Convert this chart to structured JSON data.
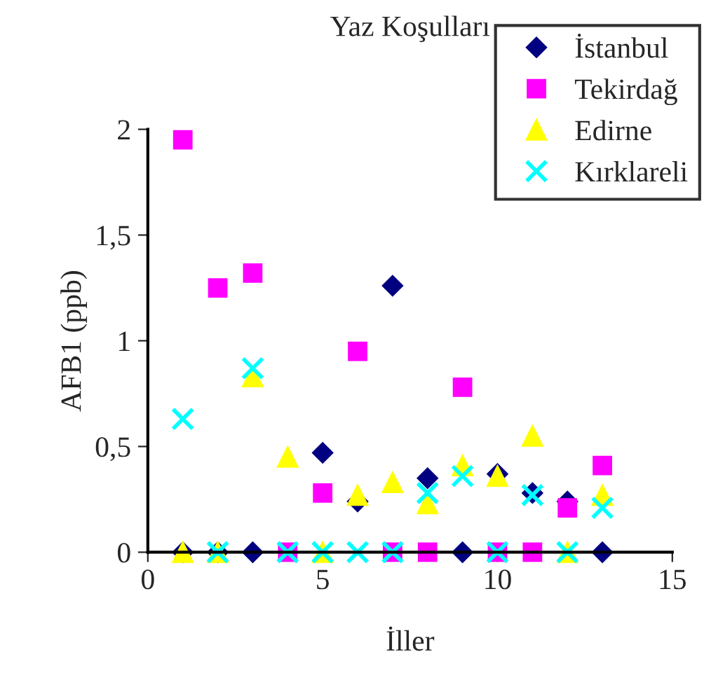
{
  "chart_data": {
    "type": "scatter",
    "title": "Yaz Koşulları",
    "xlabel": "İller",
    "ylabel": "AFB1 (ppb)",
    "x": [
      1,
      2,
      3,
      4,
      5,
      6,
      7,
      8,
      9,
      10,
      11,
      12,
      13
    ],
    "series": [
      {
        "name": "İstanbul",
        "color": "#000080",
        "marker": "diamond",
        "values": [
          0,
          0,
          0,
          null,
          0.47,
          0.24,
          1.26,
          0.35,
          0,
          0.37,
          0.28,
          0.24,
          0
        ]
      },
      {
        "name": "Tekirdağ",
        "color": "#ff00ff",
        "marker": "square",
        "values": [
          1.95,
          1.25,
          1.32,
          0,
          0.28,
          0.95,
          0,
          0,
          0.78,
          0,
          0,
          0.21,
          0.41
        ]
      },
      {
        "name": "Edirne",
        "color": "#ffff00",
        "marker": "triangle",
        "values": [
          0,
          0,
          0.83,
          0.45,
          0,
          0.27,
          0.33,
          0.23,
          0.41,
          0.36,
          0.55,
          0,
          0.27
        ]
      },
      {
        "name": "Kırklareli",
        "color": "#00ffff",
        "marker": "cross",
        "values": [
          0.63,
          0,
          0.87,
          0,
          0,
          0,
          0,
          0.28,
          0.36,
          0,
          0.27,
          0,
          0.21
        ]
      }
    ],
    "xlim": [
      0,
      15
    ],
    "xticks": [
      0,
      5,
      10,
      15
    ],
    "ylim": [
      0,
      2
    ],
    "yticks": [
      0,
      {
        "value": 0.5,
        "label": "0,5"
      },
      1,
      {
        "value": 1.5,
        "label": "1,5"
      },
      2
    ],
    "grid": false,
    "legend": "top right"
  }
}
